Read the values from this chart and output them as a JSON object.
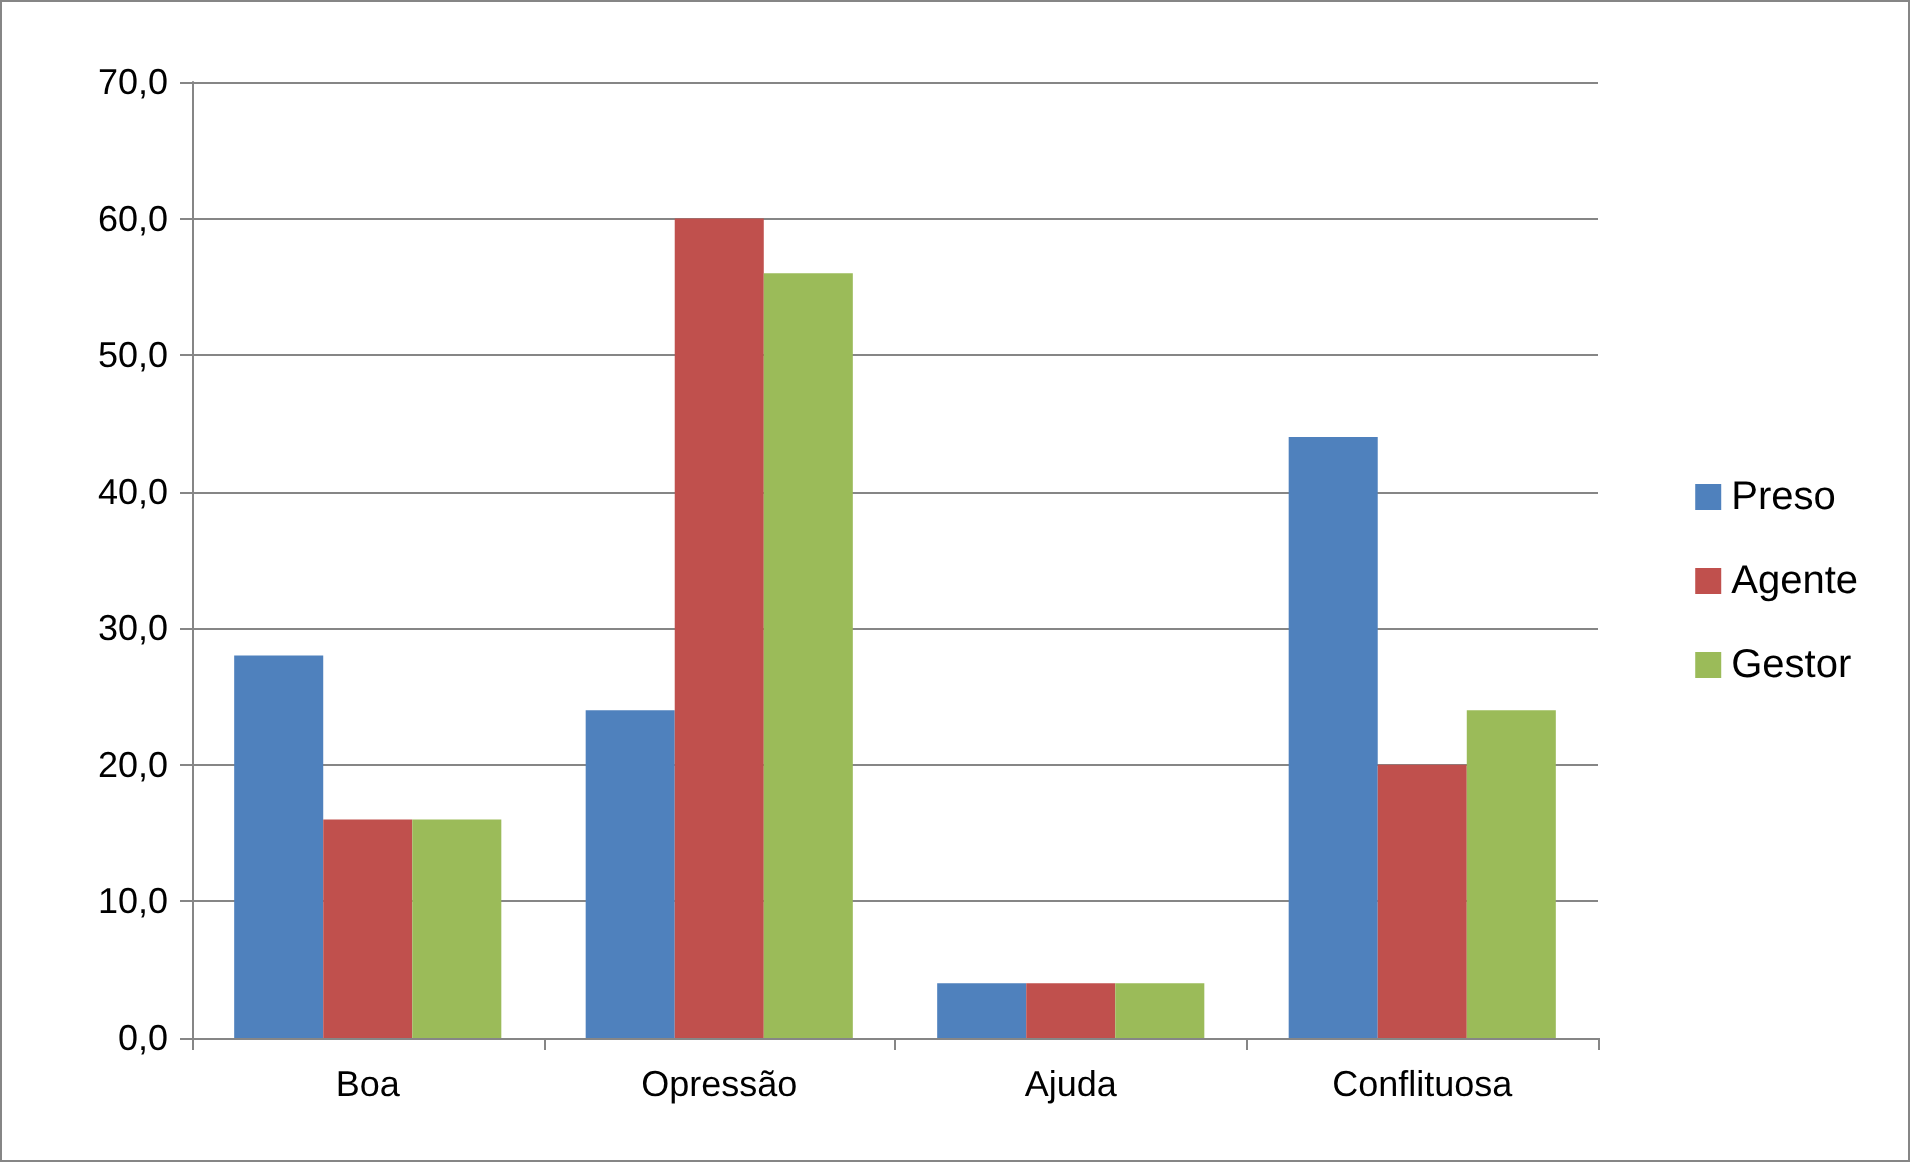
{
  "chart_data": {
    "type": "bar",
    "categories": [
      "Boa",
      "Opressão",
      "Ajuda",
      "Conflituosa"
    ],
    "series": [
      {
        "name": "Preso",
        "color": "#4f81bd",
        "values": [
          28,
          24,
          4,
          44
        ]
      },
      {
        "name": "Agente",
        "color": "#c0504d",
        "values": [
          16,
          60,
          4,
          20
        ]
      },
      {
        "name": "Gestor",
        "color": "#9bbb59",
        "values": [
          16,
          56,
          4,
          24
        ]
      }
    ],
    "ylim": [
      0,
      70
    ],
    "yticks": [
      {
        "value": 0,
        "label": "0,0"
      },
      {
        "value": 10,
        "label": "10,0"
      },
      {
        "value": 20,
        "label": "20,0"
      },
      {
        "value": 30,
        "label": "30,0"
      },
      {
        "value": 40,
        "label": "40,0"
      },
      {
        "value": 50,
        "label": "50,0"
      },
      {
        "value": 60,
        "label": "60,0"
      },
      {
        "value": 70,
        "label": "70,0"
      }
    ],
    "grid": "y",
    "legend": "right"
  }
}
